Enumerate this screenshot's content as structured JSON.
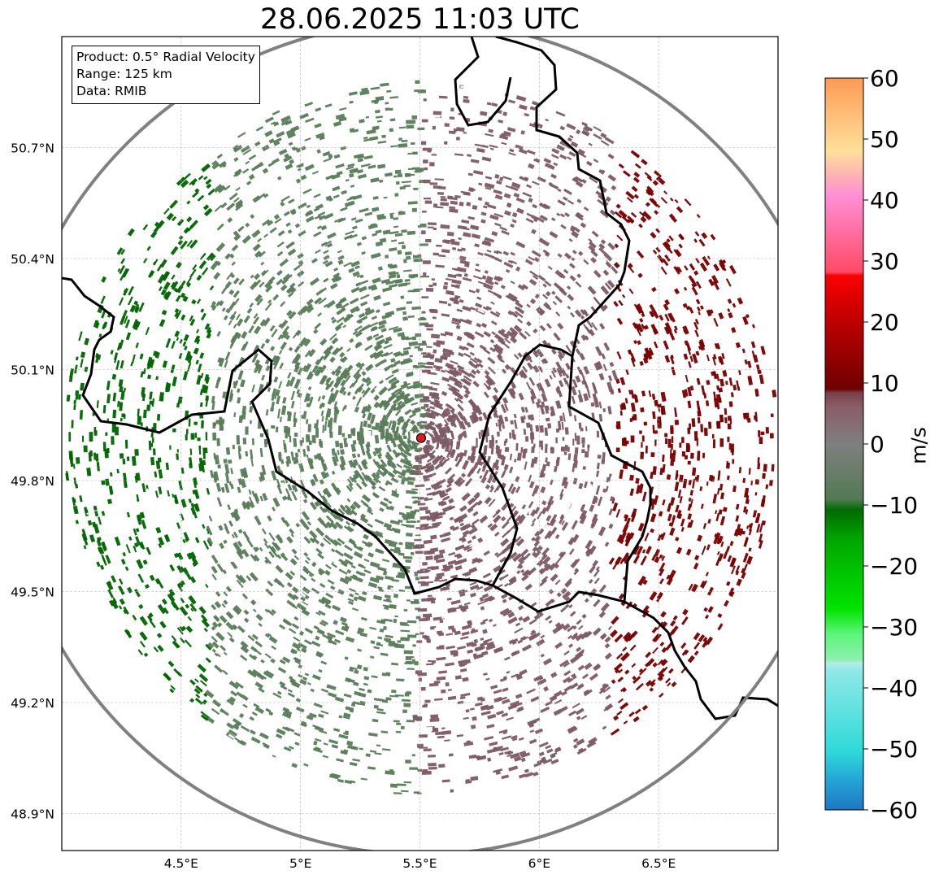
{
  "title": "28.06.2025 11:03 UTC",
  "info": {
    "product": "Product: 0.5° Radial Velocity",
    "range": "Range: 125 km",
    "data_source": "Data: RMIB"
  },
  "map": {
    "lon_range": [
      4.0,
      7.0
    ],
    "lat_range": [
      48.8,
      51.0
    ],
    "radar_site": {
      "lon": 5.505,
      "lat": 49.915
    },
    "range_ring_color": "#808080",
    "lat_ticks": [
      {
        "value": 50.7,
        "label": "50.7°N"
      },
      {
        "value": 50.4,
        "label": "50.4°N"
      },
      {
        "value": 50.1,
        "label": "50.1°N"
      },
      {
        "value": 49.8,
        "label": "49.8°N"
      },
      {
        "value": 49.5,
        "label": "49.5°N"
      },
      {
        "value": 49.2,
        "label": "49.2°N"
      },
      {
        "value": 48.9,
        "label": "48.9°N"
      }
    ],
    "lon_ticks": [
      {
        "value": 4.5,
        "label": "4.5°E"
      },
      {
        "value": 5.0,
        "label": "5°E"
      },
      {
        "value": 5.5,
        "label": "5.5°E"
      },
      {
        "value": 6.0,
        "label": "6°E"
      },
      {
        "value": 6.5,
        "label": "6.5°E"
      }
    ]
  },
  "colorbar": {
    "label": "m/s",
    "min": -60,
    "max": 60,
    "ticks": [
      "60",
      "50",
      "40",
      "30",
      "20",
      "10",
      "0",
      "−10",
      "−20",
      "−30",
      "−40",
      "−50",
      "−60"
    ],
    "colors": {
      "approaching_strong": "#006400",
      "approaching_weak": "#5a7d5a",
      "receding_weak": "#7d5a65",
      "receding_strong": "#780000"
    }
  }
}
